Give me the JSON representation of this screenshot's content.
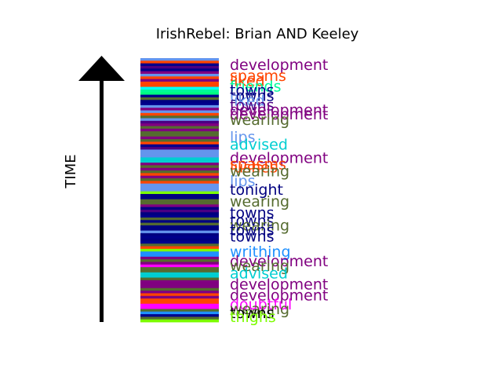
{
  "chart_data": {
    "type": "timeline-bands",
    "title": "IrishRebel: Brian AND Keeley",
    "ylabel": "TIME",
    "grid": false,
    "legend": "none",
    "stripes": [
      "#6495ed",
      "#ff4500",
      "#00008b",
      "#4b0082",
      "#00008b",
      "#800080",
      "#6495ed",
      "#ff4500",
      "#800080",
      "#ff4500",
      "#ff4500",
      "#00ffff",
      "#00fa9a",
      "#00ff7f",
      "#00008b",
      "#556b2f",
      "#000080",
      "#00008b",
      "#6495ed",
      "#800080",
      "#6495ed",
      "#ff4500",
      "#556b2f",
      "#6495ed",
      "#4b0082",
      "#800080",
      "#556b2f",
      "#800080",
      "#556b2f",
      "#556b2f",
      "#800080",
      "#556b2f",
      "#ff4500",
      "#00008b",
      "#4b0082",
      "#6495ed",
      "#6495ed",
      "#6495ed",
      "#00ced1",
      "#00ced1",
      "#800080",
      "#556b2f",
      "#800080",
      "#556b2f",
      "#ff4500",
      "#800080",
      "#556b2f",
      "#ff4500",
      "#6495ed",
      "#6495ed",
      "#6495ed",
      "#7cfc00",
      "#000080",
      "#000080",
      "#556b2f",
      "#556b2f",
      "#800080",
      "#000080",
      "#4b0082",
      "#000080",
      "#00008b",
      "#556b2f",
      "#000080",
      "#556b2f",
      "#000080",
      "#000080",
      "#6495ed",
      "#000080",
      "#00008b",
      "#000080",
      "#00008b",
      "#556b2f",
      "#ff4500",
      "#7cfc00",
      "#1e90ff",
      "#1e90ff",
      "#800080",
      "#556b2f",
      "#800080",
      "#ff00ff",
      "#556b2f",
      "#556b2f",
      "#00ced1",
      "#00ced1",
      "#556b2f",
      "#800080",
      "#800080",
      "#800080",
      "#556b2f",
      "#800080",
      "#ff4500",
      "#800080",
      "#ff4500",
      "#ff4500",
      "#ff00ff",
      "#ff00ff",
      "#556b2f",
      "#1e90ff",
      "#00008b",
      "#556b2f",
      "#7cfc00"
    ],
    "labels": [
      {
        "text": "development",
        "color": "#800080",
        "row": 0.14
      },
      {
        "text": "spasms",
        "color": "#ff4500",
        "row": 0.28
      },
      {
        "text": "liked",
        "color": "#ff4500",
        "row": 0.34
      },
      {
        "text": "friends",
        "color": "#00fa9a",
        "row": 0.41
      },
      {
        "text": "towns",
        "color": "#00008b",
        "row": 0.46
      },
      {
        "text": "towns",
        "color": "#000080",
        "row": 0.53
      },
      {
        "text": "liked",
        "color": "#6495ed",
        "row": 0.59
      },
      {
        "text": "towns",
        "color": "#4b0082",
        "row": 0.65
      },
      {
        "text": "development",
        "color": "#800080",
        "row": 0.71
      },
      {
        "text": "development",
        "color": "#800080",
        "row": 0.76
      },
      {
        "text": "wearing",
        "color": "#556b2f",
        "row": 0.83
      },
      {
        "text": "lips",
        "color": "#6495ed",
        "row": 1.05
      },
      {
        "text": "advised",
        "color": "#00ced1",
        "row": 1.14
      },
      {
        "text": "development",
        "color": "#800080",
        "row": 1.31
      },
      {
        "text": "spasms",
        "color": "#ff4500",
        "row": 1.39
      },
      {
        "text": "lushes",
        "color": "#ff4500",
        "row": 1.43
      },
      {
        "text": "wearing",
        "color": "#556b2f",
        "row": 1.48
      },
      {
        "text": "lips",
        "color": "#6495ed",
        "row": 1.6
      },
      {
        "text": "tonight",
        "color": "#000080",
        "row": 1.71
      },
      {
        "text": "wearing",
        "color": "#556b2f",
        "row": 1.86
      },
      {
        "text": "towns",
        "color": "#000080",
        "row": 2.0
      },
      {
        "text": "towns",
        "color": "#000080",
        "row": 2.1
      },
      {
        "text": "wearing",
        "color": "#556b2f",
        "row": 2.16
      },
      {
        "text": "towns",
        "color": "#000080",
        "row": 2.22
      },
      {
        "text": "towns",
        "color": "#000080",
        "row": 2.3
      },
      {
        "text": "writhing",
        "color": "#1e90ff",
        "row": 2.49
      },
      {
        "text": "development",
        "color": "#800080",
        "row": 2.61
      },
      {
        "text": "wearing",
        "color": "#556b2f",
        "row": 2.67
      },
      {
        "text": "advised",
        "color": "#00ced1",
        "row": 2.76
      },
      {
        "text": "development",
        "color": "#800080",
        "row": 2.9
      },
      {
        "text": "development",
        "color": "#800080",
        "row": 3.04
      },
      {
        "text": "doubtful",
        "color": "#ff00ff",
        "row": 3.15
      },
      {
        "text": "wearing",
        "color": "#556b2f",
        "row": 3.21
      },
      {
        "text": "towns",
        "color": "#000000",
        "row": 3.26
      },
      {
        "text": "thighs",
        "color": "#7cfc00",
        "row": 3.31
      }
    ]
  }
}
